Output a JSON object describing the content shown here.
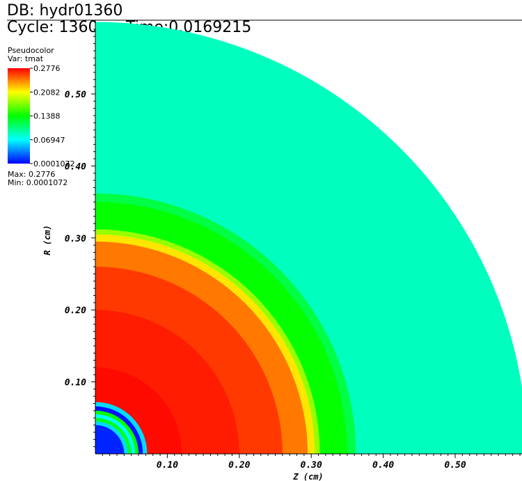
{
  "header": {
    "db": "DB: hydr01360",
    "cycle": "Cycle: 1360",
    "time": "Time:0.0169215"
  },
  "legend": {
    "plot_type": "Pseudocolor",
    "variable": "Var: tmat",
    "max_label": "Max:  0.2776",
    "min_label": "Min:  0.0001072",
    "ticks": [
      {
        "value": 0.2776,
        "label": "0.2776"
      },
      {
        "value": 0.2082,
        "label": "0.2082"
      },
      {
        "value": 0.1388,
        "label": "0.1388"
      },
      {
        "value": 0.06947,
        "label": "0.06947"
      },
      {
        "value": 0.0001072,
        "label": "0.0001072"
      }
    ],
    "colormap": [
      "#0000ff",
      "#00ffff",
      "#00ff00",
      "#ffff00",
      "#ff0000"
    ]
  },
  "chart_data": {
    "type": "heatmap",
    "title": "",
    "xlabel": "Z (cm)",
    "ylabel": "R (cm)",
    "xlim": [
      0,
      0.6
    ],
    "ylim": [
      0,
      0.6
    ],
    "x_ticks": [
      "0.10",
      "0.20",
      "0.30",
      "0.40",
      "0.50"
    ],
    "y_ticks": [
      "0.10",
      "0.20",
      "0.30",
      "0.40",
      "0.50"
    ],
    "domain_radius": 0.6,
    "radial_bands": [
      {
        "r_inner": 0.0,
        "r_outer": 0.04,
        "value": 0.01
      },
      {
        "r_inner": 0.04,
        "r_outer": 0.045,
        "value": 0.06
      },
      {
        "r_inner": 0.045,
        "r_outer": 0.05,
        "value": 0.13
      },
      {
        "r_inner": 0.05,
        "r_outer": 0.055,
        "value": 0.07
      },
      {
        "r_inner": 0.055,
        "r_outer": 0.06,
        "value": 0.14
      },
      {
        "r_inner": 0.06,
        "r_outer": 0.066,
        "value": 0.005
      },
      {
        "r_inner": 0.066,
        "r_outer": 0.072,
        "value": 0.06
      },
      {
        "r_inner": 0.072,
        "r_outer": 0.12,
        "value": 0.275
      },
      {
        "r_inner": 0.12,
        "r_outer": 0.2,
        "value": 0.27
      },
      {
        "r_inner": 0.2,
        "r_outer": 0.26,
        "value": 0.262
      },
      {
        "r_inner": 0.26,
        "r_outer": 0.295,
        "value": 0.245
      },
      {
        "r_inner": 0.295,
        "r_outer": 0.305,
        "value": 0.215
      },
      {
        "r_inner": 0.305,
        "r_outer": 0.312,
        "value": 0.18
      },
      {
        "r_inner": 0.312,
        "r_outer": 0.35,
        "value": 0.14
      },
      {
        "r_inner": 0.35,
        "r_outer": 0.362,
        "value": 0.12
      },
      {
        "r_inner": 0.362,
        "r_outer": 0.6,
        "value": 0.087
      }
    ]
  }
}
